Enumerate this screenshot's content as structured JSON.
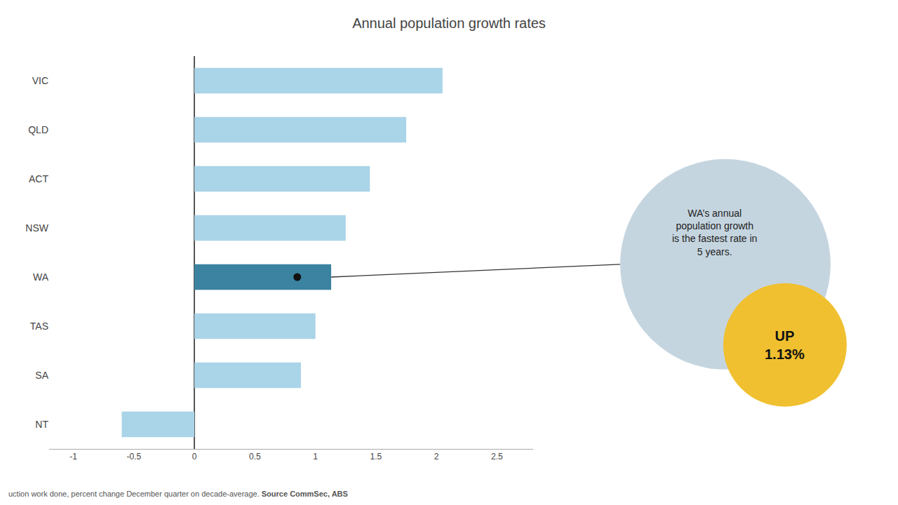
{
  "chart_data": {
    "type": "bar",
    "orientation": "horizontal",
    "title": "Annual population growth rates",
    "categories": [
      "VIC",
      "QLD",
      "ACT",
      "NSW",
      "WA",
      "TAS",
      "SA",
      "NT"
    ],
    "values": [
      2.05,
      1.75,
      1.45,
      1.25,
      1.13,
      1.0,
      0.88,
      -0.6
    ],
    "colors": [
      "#aad4e8",
      "#aad4e8",
      "#aad4e8",
      "#aad4e8",
      "#3b83a0",
      "#aad4e8",
      "#aad4e8",
      "#aad4e8"
    ],
    "average": {
      "category": "WA",
      "value": 0.85,
      "color": "#111111"
    },
    "xlim": [
      -1.2,
      2.8
    ],
    "xticks": [
      -1,
      -0.5,
      0,
      0.5,
      1,
      1.5,
      2,
      2.5
    ],
    "grid": false,
    "annotations": [
      {
        "text": "WA’s annual\npopulation growth\nis the fastest rate in\n5 years.",
        "color": "#c5d5e0"
      },
      {
        "text": "UP\n1.13%",
        "color": "#f0c030"
      }
    ],
    "footer": "uction work done, percent change December quarter on decade-average. ",
    "source": "Source CommSec, ABS"
  }
}
